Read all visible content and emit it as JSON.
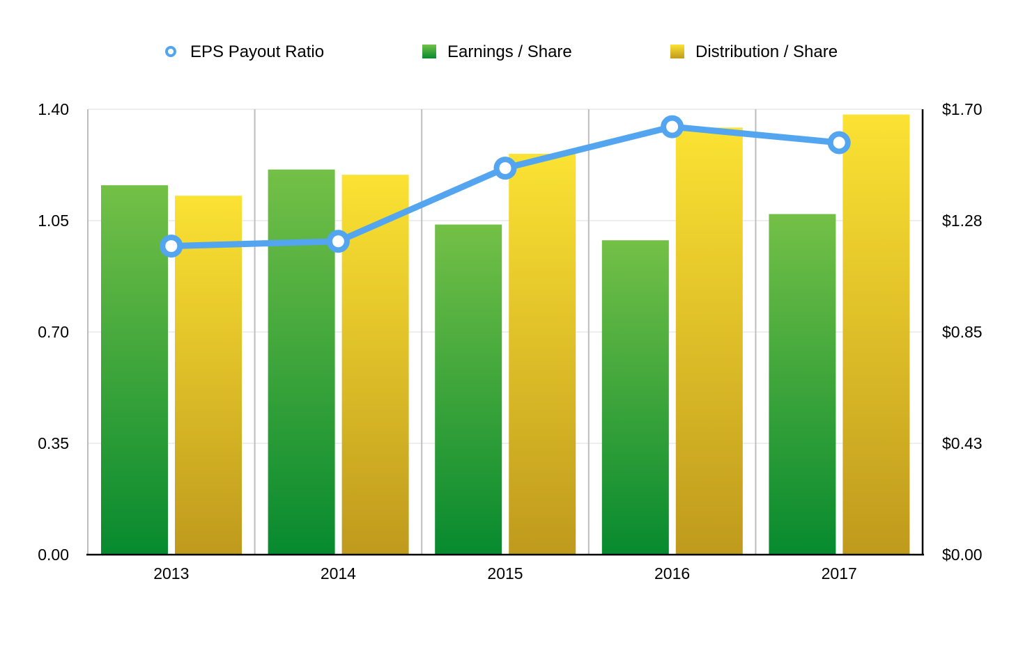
{
  "chart_data": {
    "type": "bar",
    "categories": [
      "2013",
      "2014",
      "2015",
      "2016",
      "2017"
    ],
    "series": [
      {
        "name": "Earnings / Share",
        "type": "bar",
        "axis": "right",
        "values": [
          1.41,
          1.47,
          1.26,
          1.2,
          1.3
        ]
      },
      {
        "name": "Distribution / Share",
        "type": "bar",
        "axis": "right",
        "values": [
          1.37,
          1.45,
          1.53,
          1.63,
          1.68
        ]
      },
      {
        "name": "EPS Payout Ratio",
        "type": "line",
        "axis": "left",
        "values": [
          0.97,
          0.985,
          1.215,
          1.345,
          1.295
        ]
      }
    ],
    "y_left": {
      "ticks": [
        "0.00",
        "0.35",
        "0.70",
        "1.05",
        "1.40"
      ],
      "ylim": [
        0,
        1.4
      ]
    },
    "y_right": {
      "ticks": [
        "$0.00",
        "$0.43",
        "$0.85",
        "$1.28",
        "$1.70"
      ],
      "ylim": [
        0,
        1.7
      ]
    },
    "grid": true,
    "legend_position": "top-center",
    "colors": {
      "earnings_top": "#74c047",
      "earnings_bottom": "#078a2f",
      "distribution_top": "#fbe233",
      "distribution_bottom": "#bf9a1d",
      "line": "#52a5ee",
      "grid": "#dcdcdc",
      "category_divider": "#bdbdbd",
      "axis": "#000000"
    }
  }
}
